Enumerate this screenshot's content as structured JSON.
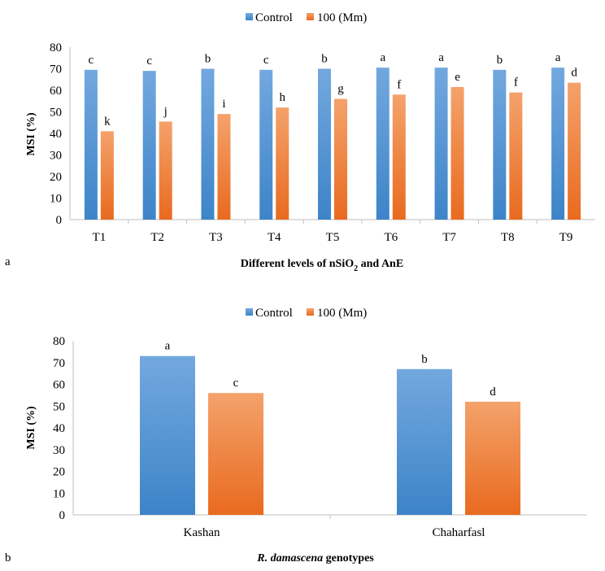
{
  "colors": {
    "control_top": "#73a8df",
    "control_bottom": "#3d84c8",
    "treatment_top": "#f4a26b",
    "treatment_bottom": "#e96a1f",
    "axis": "#bfbfbf"
  },
  "chart_data": [
    {
      "type": "bar",
      "panel_label": "a",
      "categories": [
        "T1",
        "T2",
        "T3",
        "T4",
        "T5",
        "T6",
        "T7",
        "T8",
        "T9"
      ],
      "series": [
        {
          "name": "Control",
          "values": [
            69.5,
            69.0,
            70.0,
            69.5,
            70.0,
            70.5,
            70.5,
            69.5,
            70.5
          ],
          "labels": [
            "c",
            "c",
            "b",
            "c",
            "b",
            "a",
            "a",
            "b",
            "a"
          ]
        },
        {
          "name": "100 (Mm)",
          "values": [
            41.0,
            45.5,
            49.0,
            52.0,
            56.0,
            58.0,
            61.5,
            59.0,
            63.5
          ],
          "labels": [
            "k",
            "j",
            "i",
            "h",
            "g",
            "f",
            "e",
            "f",
            "d"
          ]
        }
      ],
      "ylabel": "MSI (%)",
      "xlabel_main": "Different levels of nSiO",
      "xlabel_sub": "2",
      "xlabel_rest": " and AnE",
      "ylim": [
        0,
        80
      ],
      "yticks": [
        0,
        10,
        20,
        30,
        40,
        50,
        60,
        70,
        80
      ],
      "legend": "top-center"
    },
    {
      "type": "bar",
      "panel_label": "b",
      "categories": [
        "Kashan",
        "Chaharfasl"
      ],
      "series": [
        {
          "name": "Control",
          "values": [
            73.0,
            67.0
          ],
          "labels": [
            "a",
            "b"
          ]
        },
        {
          "name": "100 (Mm)",
          "values": [
            56.0,
            52.0
          ],
          "labels": [
            "c",
            "d"
          ]
        }
      ],
      "ylabel": "MSI (%)",
      "xlabel_italic": "R. damascena",
      "xlabel_rest": " genotypes",
      "ylim": [
        0,
        80
      ],
      "yticks": [
        0,
        10,
        20,
        30,
        40,
        50,
        60,
        70,
        80
      ],
      "legend": "top-center"
    }
  ]
}
